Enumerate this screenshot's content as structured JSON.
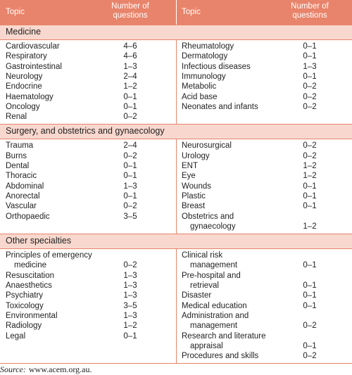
{
  "table": {
    "header": {
      "topic_left": "Topic",
      "number_left": [
        "Number of",
        "questions"
      ],
      "topic_right": "Topic",
      "number_right": [
        "Number of",
        "questions"
      ]
    },
    "sections": [
      {
        "title": "Medicine",
        "left": [
          {
            "topic": [
              "Cardiovascular"
            ],
            "number": "4–6"
          },
          {
            "topic": [
              "Respiratory"
            ],
            "number": "4–6"
          },
          {
            "topic": [
              "Gastrointestinal"
            ],
            "number": "1–3"
          },
          {
            "topic": [
              "Neurology"
            ],
            "number": "2–4"
          },
          {
            "topic": [
              "Endocrine"
            ],
            "number": "1–2"
          },
          {
            "topic": [
              "Haematology"
            ],
            "number": "0–1"
          },
          {
            "topic": [
              "Oncology"
            ],
            "number": "0–1"
          },
          {
            "topic": [
              "Renal"
            ],
            "number": "0–2"
          }
        ],
        "right": [
          {
            "topic": [
              "Rheumatology"
            ],
            "number": "0–1"
          },
          {
            "topic": [
              "Dermatology"
            ],
            "number": "0–1"
          },
          {
            "topic": [
              "Infectious diseases"
            ],
            "number": "1–3"
          },
          {
            "topic": [
              "Immunology"
            ],
            "number": "0–1"
          },
          {
            "topic": [
              "Metabolic"
            ],
            "number": "0–2"
          },
          {
            "topic": [
              "Acid base"
            ],
            "number": "0–2"
          },
          {
            "topic": [
              "Neonates and infants"
            ],
            "number": "0–2"
          }
        ]
      },
      {
        "title": "Surgery, and obstetrics and gynaecology",
        "left": [
          {
            "topic": [
              "Trauma"
            ],
            "number": "2–4"
          },
          {
            "topic": [
              "Burns"
            ],
            "number": "0–2"
          },
          {
            "topic": [
              "Dental"
            ],
            "number": "0–1"
          },
          {
            "topic": [
              "Thoracic"
            ],
            "number": "0–1"
          },
          {
            "topic": [
              "Abdominal"
            ],
            "number": "1–3"
          },
          {
            "topic": [
              "Anorectal"
            ],
            "number": "0–1"
          },
          {
            "topic": [
              "Vascular"
            ],
            "number": "0–2"
          },
          {
            "topic": [
              "Orthopaedic"
            ],
            "number": "3–5"
          }
        ],
        "right": [
          {
            "topic": [
              "Neurosurgical"
            ],
            "number": "0–2"
          },
          {
            "topic": [
              "Urology"
            ],
            "number": "0–2"
          },
          {
            "topic": [
              "ENT"
            ],
            "number": "1–2"
          },
          {
            "topic": [
              "Eye"
            ],
            "number": "1–2"
          },
          {
            "topic": [
              "Wounds"
            ],
            "number": "0–1"
          },
          {
            "topic": [
              "Plastic"
            ],
            "number": "0–1"
          },
          {
            "topic": [
              "Breast"
            ],
            "number": "0–1"
          },
          {
            "topic": [
              "Obstetrics and",
              "gynaecology"
            ],
            "number": "1–2"
          }
        ]
      },
      {
        "title": "Other specialties",
        "left": [
          {
            "topic": [
              "Principles of emergency",
              "medicine"
            ],
            "number": "0–2"
          },
          {
            "topic": [
              "Resuscitation"
            ],
            "number": "1–3"
          },
          {
            "topic": [
              "Anaesthetics"
            ],
            "number": "1–3"
          },
          {
            "topic": [
              "Psychiatry"
            ],
            "number": "1–3"
          },
          {
            "topic": [
              "Toxicology"
            ],
            "number": "3–5"
          },
          {
            "topic": [
              "Environmental"
            ],
            "number": "1–3"
          },
          {
            "topic": [
              "Radiology"
            ],
            "number": "1–2"
          },
          {
            "topic": [
              "Legal"
            ],
            "number": "0–1"
          }
        ],
        "right": [
          {
            "topic": [
              "Clinical risk",
              "management"
            ],
            "number": "0–1"
          },
          {
            "topic": [
              "Pre-hospital and",
              "retrieval"
            ],
            "number": "0–1"
          },
          {
            "topic": [
              "Disaster"
            ],
            "number": "0–1"
          },
          {
            "topic": [
              "Medical education"
            ],
            "number": "0–1"
          },
          {
            "topic": [
              "Administration and",
              "management"
            ],
            "number": "0–2"
          },
          {
            "topic": [
              "Research and literature",
              "appraisal"
            ],
            "number": "0–1"
          },
          {
            "topic": [
              "Procedures and skills"
            ],
            "number": "0–2"
          }
        ]
      }
    ]
  },
  "source": {
    "label": "Source:",
    "text": "www.acem.org.au."
  }
}
